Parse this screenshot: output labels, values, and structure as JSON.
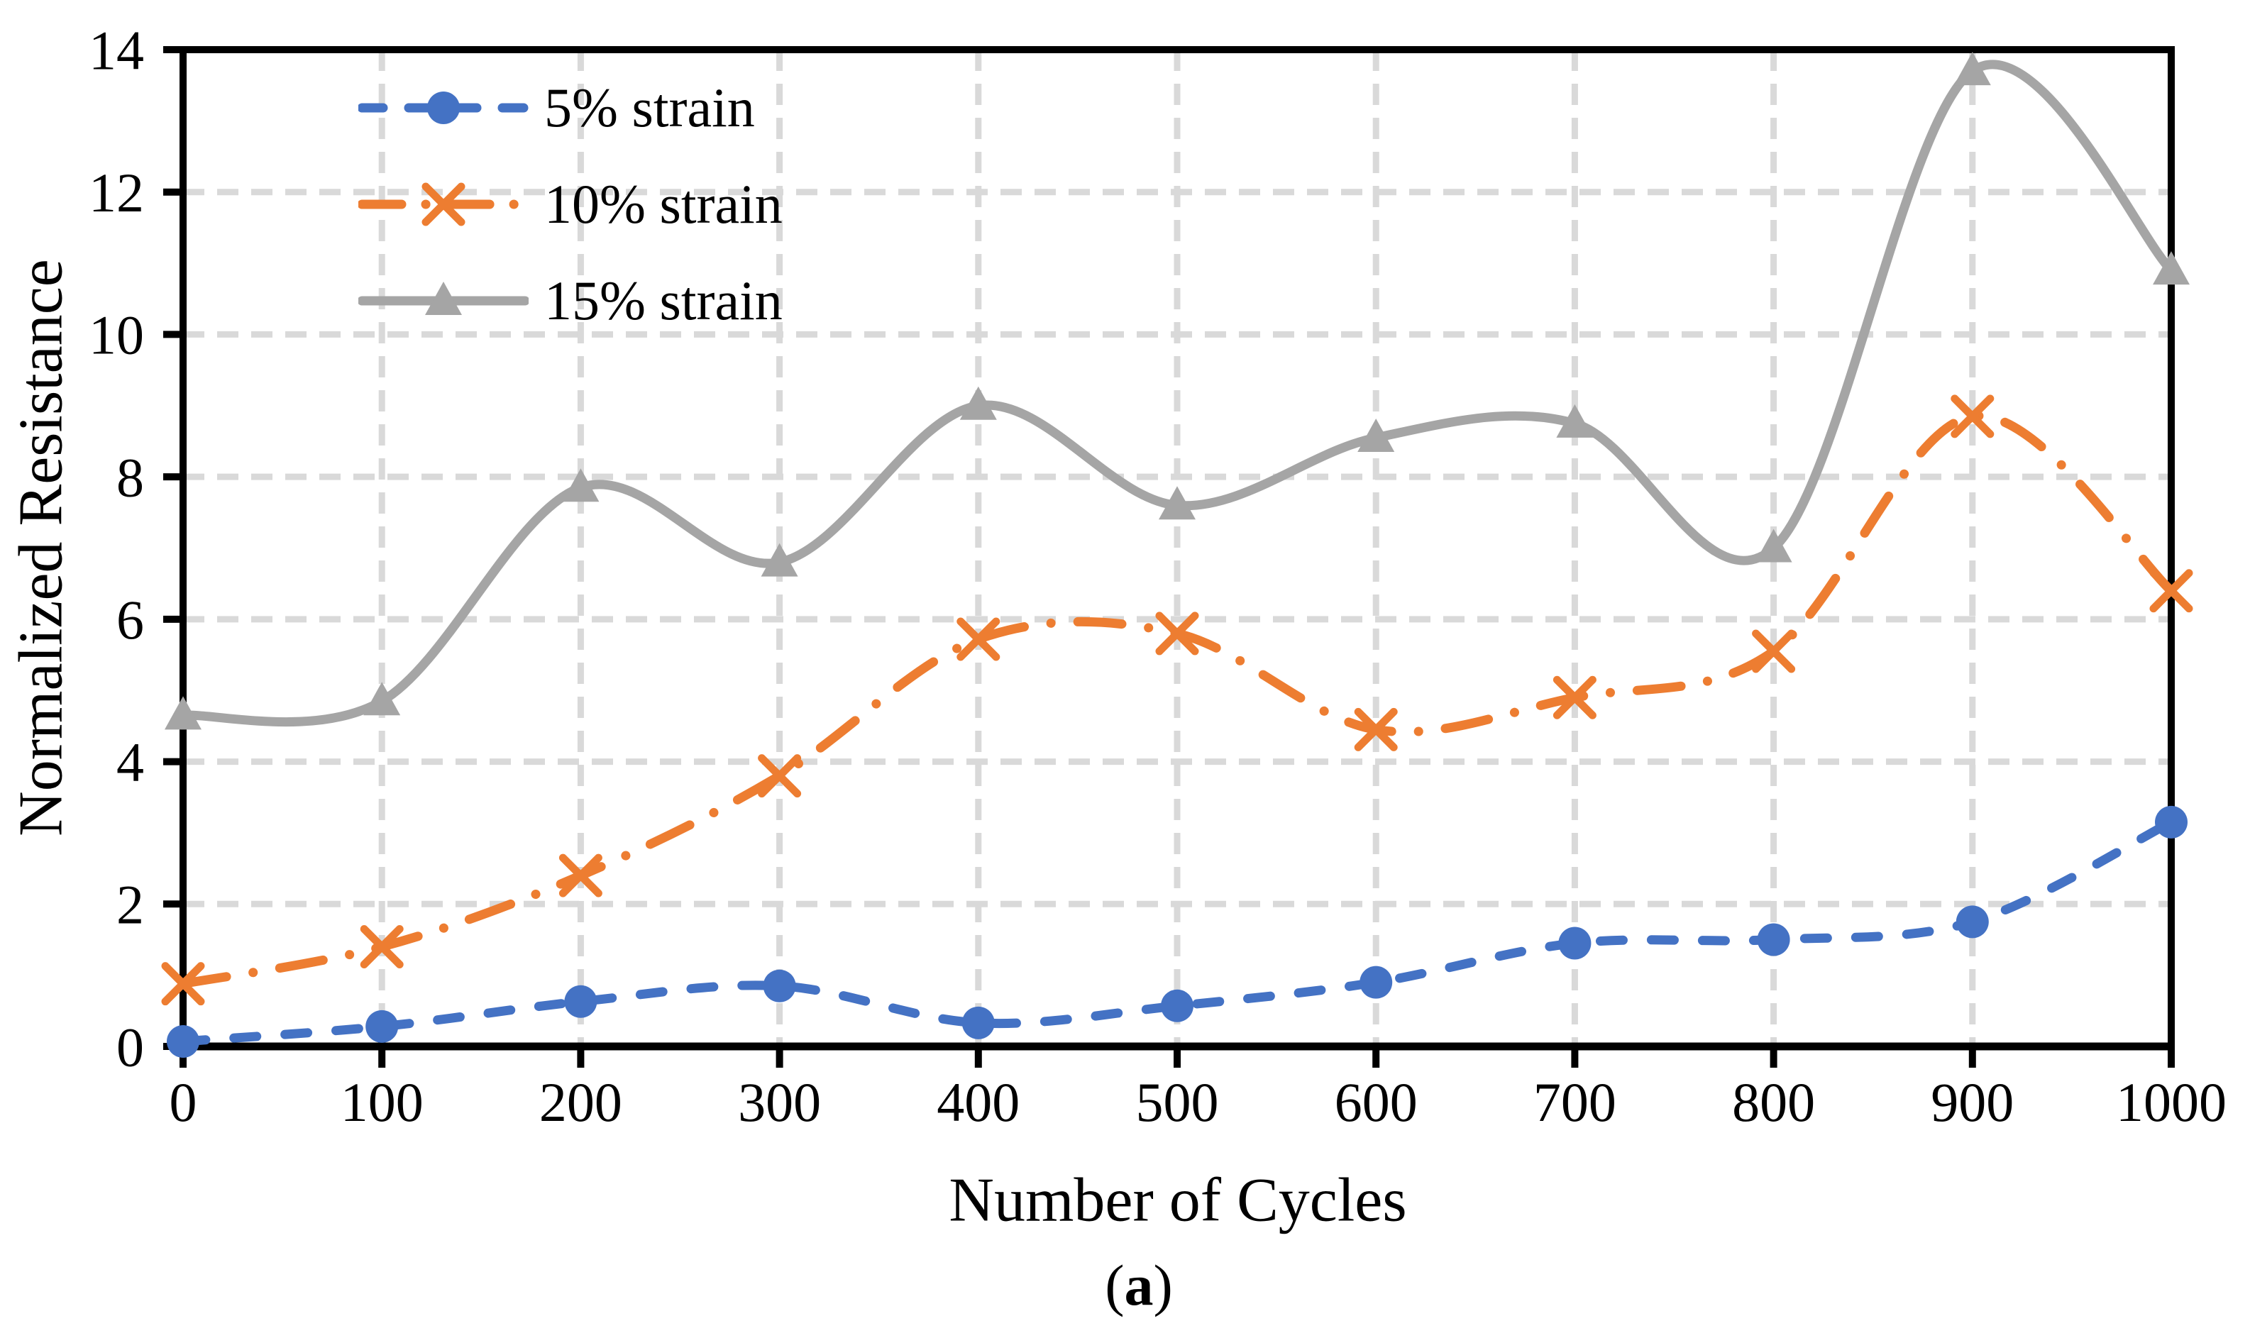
{
  "figure": {
    "caption_prefix": "(",
    "caption_letter": "a",
    "caption_suffix": ")"
  },
  "chart_data": {
    "type": "line",
    "title": "",
    "xlabel": "Number of Cycles",
    "ylabel": "Normalized Resistance",
    "x": [
      0,
      100,
      200,
      300,
      400,
      500,
      600,
      700,
      800,
      900,
      1000
    ],
    "xlim": [
      0,
      1000
    ],
    "ylim": [
      0,
      14
    ],
    "x_ticks": [
      0,
      100,
      200,
      300,
      400,
      500,
      600,
      700,
      800,
      900,
      1000
    ],
    "y_ticks": [
      0,
      2,
      4,
      6,
      8,
      10,
      12,
      14
    ],
    "grid": true,
    "legend_position": "top-left-inside",
    "smooth": true,
    "series": [
      {
        "name": "5% strain",
        "color": "#4472C4",
        "line_style": "dashed",
        "marker": "circle",
        "values": [
          0.07,
          0.28,
          0.63,
          0.85,
          0.33,
          0.57,
          0.9,
          1.45,
          1.5,
          1.75,
          3.15
        ]
      },
      {
        "name": "10% strain",
        "color": "#ED7D31",
        "line_style": "dash-dot",
        "marker": "x",
        "values": [
          0.88,
          1.4,
          2.4,
          3.8,
          5.72,
          5.8,
          4.45,
          4.9,
          5.55,
          8.85,
          6.4
        ]
      },
      {
        "name": "15% strain",
        "color": "#A5A5A5",
        "line_style": "solid",
        "marker": "triangle",
        "values": [
          4.65,
          4.85,
          7.85,
          6.8,
          9.0,
          7.6,
          8.55,
          8.75,
          7.0,
          13.7,
          10.9
        ]
      }
    ],
    "colors": {
      "gridline": "#D9D9D9",
      "axis": "#000000",
      "text": "#000000",
      "background": "#FFFFFF"
    }
  }
}
